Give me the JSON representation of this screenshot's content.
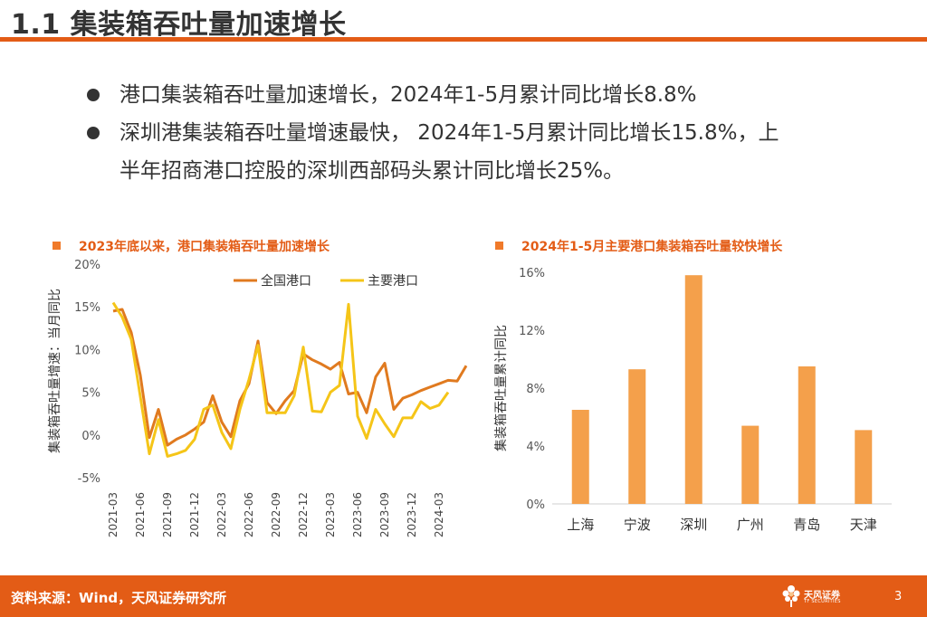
{
  "header": {
    "title": "1.1 集装箱吞吐量加速增长"
  },
  "bullets": [
    "港口集装箱吞吐量加速增长，2024年1-5月累计同比增长8.8%",
    "深圳港集装箱吞吐量增速最快， 2024年1-5月累计同比增长15.8%，上",
    "半年招商港口控股的深圳西部码头累计同比增长25%。"
  ],
  "colors": {
    "accent": "#e35c16",
    "national": "#e07a1f",
    "major": "#f5c518",
    "bar": "#f4a04b"
  },
  "footer": {
    "source": "资料来源：Wind，天风证券研究所",
    "brand": "天风证券",
    "brand_sub": "TF SECURITIES",
    "page": "3"
  },
  "chart_data": [
    {
      "type": "line",
      "title": "2023年底以来，港口集装箱吞吐量加速增长",
      "ylabel": "集装箱吞吐量增速：当月同比",
      "xlabel": "",
      "ylim": [
        -5,
        20
      ],
      "yticks": [
        "-5%",
        "0%",
        "5%",
        "10%",
        "15%",
        "20%"
      ],
      "ytick_values": [
        -5,
        0,
        5,
        10,
        15,
        20
      ],
      "xticks": [
        "2021-03",
        "2021-06",
        "2021-09",
        "2021-12",
        "2022-03",
        "2022-06",
        "2022-09",
        "2022-12",
        "2023-03",
        "2023-06",
        "2023-09",
        "2023-12",
        "2024-03"
      ],
      "legend": [
        "全国港口",
        "主要港口"
      ],
      "series": [
        {
          "name": "全国港口",
          "values": [
            14.5,
            14.7,
            12.0,
            7.0,
            -0.3,
            3.0,
            -1.2,
            -0.5,
            0.0,
            0.7,
            1.5,
            4.6,
            1.5,
            -0.2,
            4.0,
            6.0,
            11.0,
            3.8,
            2.5,
            4.0,
            5.2,
            9.5,
            8.8,
            8.3,
            7.7,
            8.5,
            4.8,
            5.0,
            2.6,
            6.8,
            8.4,
            3.0,
            4.3,
            4.7,
            5.2,
            5.6,
            6.0,
            6.4,
            6.3,
            8.1
          ]
        },
        {
          "name": "主要港口",
          "values": [
            15.5,
            13.8,
            11.2,
            4.5,
            -2.2,
            1.8,
            -2.5,
            -2.2,
            -1.8,
            -0.5,
            3.0,
            3.5,
            0.3,
            -1.6,
            3.0,
            6.5,
            10.5,
            2.6,
            2.6,
            2.6,
            4.6,
            10.3,
            2.8,
            2.7,
            5.0,
            5.8,
            15.3,
            2.2,
            -0.4,
            3.0,
            1.3,
            -0.2,
            2.0,
            2.0,
            3.9,
            3.1,
            3.5,
            5.0
          ]
        }
      ]
    },
    {
      "type": "bar",
      "title": "2024年1-5月主要港口集装箱吞吐量较快增长",
      "ylabel": "集装箱吞吐量累计同比",
      "xlabel": "",
      "ylim": [
        0,
        16
      ],
      "yticks": [
        "0%",
        "4%",
        "8%",
        "12%",
        "16%"
      ],
      "ytick_values": [
        0,
        4,
        8,
        12,
        16
      ],
      "categories": [
        "上海",
        "宁波",
        "深圳",
        "广州",
        "青岛",
        "天津"
      ],
      "values": [
        6.5,
        9.3,
        15.8,
        5.4,
        9.5,
        5.1
      ]
    }
  ]
}
